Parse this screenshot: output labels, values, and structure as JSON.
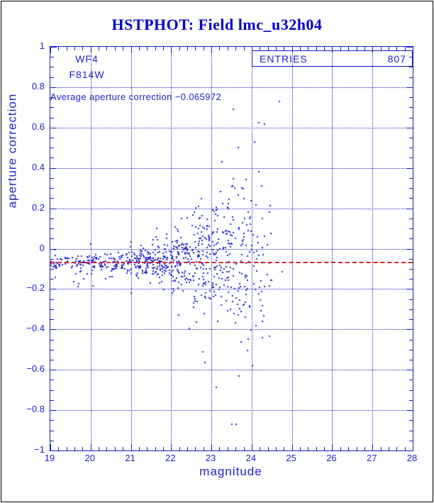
{
  "title": "HSTPHOT: Field lmc_u32h04",
  "annotations": {
    "camera": "WF4",
    "filter": "F814W",
    "average_text": "Average aperture correction −0.065972"
  },
  "stats_box": {
    "label": "ENTRIES",
    "value": "807"
  },
  "colors": {
    "title": "#0000cc",
    "frame": "#1b1bcc",
    "grid": "#2525cf",
    "text": "#2020cc",
    "points": "#2222d4",
    "avg_line": "#dd2222",
    "page_border": "#000000",
    "background": "#ffffff"
  },
  "chart_data": {
    "type": "scatter",
    "title": "HSTPHOT: Field lmc_u32h04",
    "xlabel": "magnitude",
    "ylabel": "aperture correction",
    "xlim": [
      19,
      28
    ],
    "ylim": [
      -1,
      1
    ],
    "x_tick_values": [
      19,
      20,
      21,
      22,
      23,
      24,
      25,
      26,
      27,
      28
    ],
    "x_tick_labels": [
      "19",
      "20",
      "21",
      "22",
      "23",
      "24",
      "25",
      "26",
      "27",
      "28"
    ],
    "x_minor_step": 0.2,
    "y_tick_values": [
      1,
      0.8,
      0.6,
      0.4,
      0.2,
      0,
      -0.2,
      -0.4,
      -0.6,
      -0.8,
      -1
    ],
    "y_tick_labels": [
      "1",
      "0.8",
      "0.6",
      "0.4",
      "0.2",
      "0",
      "−0.2",
      "−0.4",
      "−0.6",
      "−0.8",
      "−1"
    ],
    "y_minor_step": 0.05,
    "grid": {
      "style": "dotted",
      "x_values": [
        20,
        21,
        22,
        23,
        24,
        25,
        26,
        27
      ],
      "y_values": [
        0.8,
        0.6,
        0.4,
        0.2,
        0,
        -0.2,
        -0.4,
        -0.6,
        -0.8
      ]
    },
    "legend": {
      "label": "ENTRIES",
      "value": 807,
      "position": "top-right"
    },
    "entries": 807,
    "average_aperture_correction": -0.065972,
    "reference_line": {
      "y": -0.065972,
      "style": "dashed",
      "color": "#dd2222"
    },
    "points_summary": "807 small blue points: tight horizontal band at y≈−0.066 for magnitudes 19–21, scatter widening steadily toward fainter magnitudes, spanning roughly −0.8 to +0.85 between magnitudes 23 and 24.5; essentially no points fainter than magnitude 25.",
    "point_distribution": {
      "seed": 20,
      "bin_format": [
        "mag_min",
        "mag_max",
        "count",
        "center",
        "sigma"
      ],
      "bins": [
        [
          19.0,
          19.5,
          35,
          -0.068,
          0.016
        ],
        [
          19.5,
          20.0,
          40,
          -0.066,
          0.018
        ],
        [
          20.0,
          20.5,
          50,
          -0.065,
          0.022
        ],
        [
          20.5,
          21.0,
          60,
          -0.065,
          0.028
        ],
        [
          21.0,
          21.5,
          85,
          -0.062,
          0.038
        ],
        [
          21.5,
          22.0,
          95,
          -0.06,
          0.05
        ],
        [
          22.0,
          22.5,
          105,
          -0.055,
          0.085
        ],
        [
          22.5,
          23.0,
          105,
          -0.05,
          0.125
        ],
        [
          23.0,
          23.5,
          100,
          -0.042,
          0.17
        ],
        [
          23.5,
          24.0,
          85,
          -0.03,
          0.235
        ],
        [
          24.0,
          24.5,
          45,
          -0.02,
          0.27
        ],
        [
          24.5,
          25.0,
          2,
          0.15,
          0.3
        ]
      ]
    }
  }
}
